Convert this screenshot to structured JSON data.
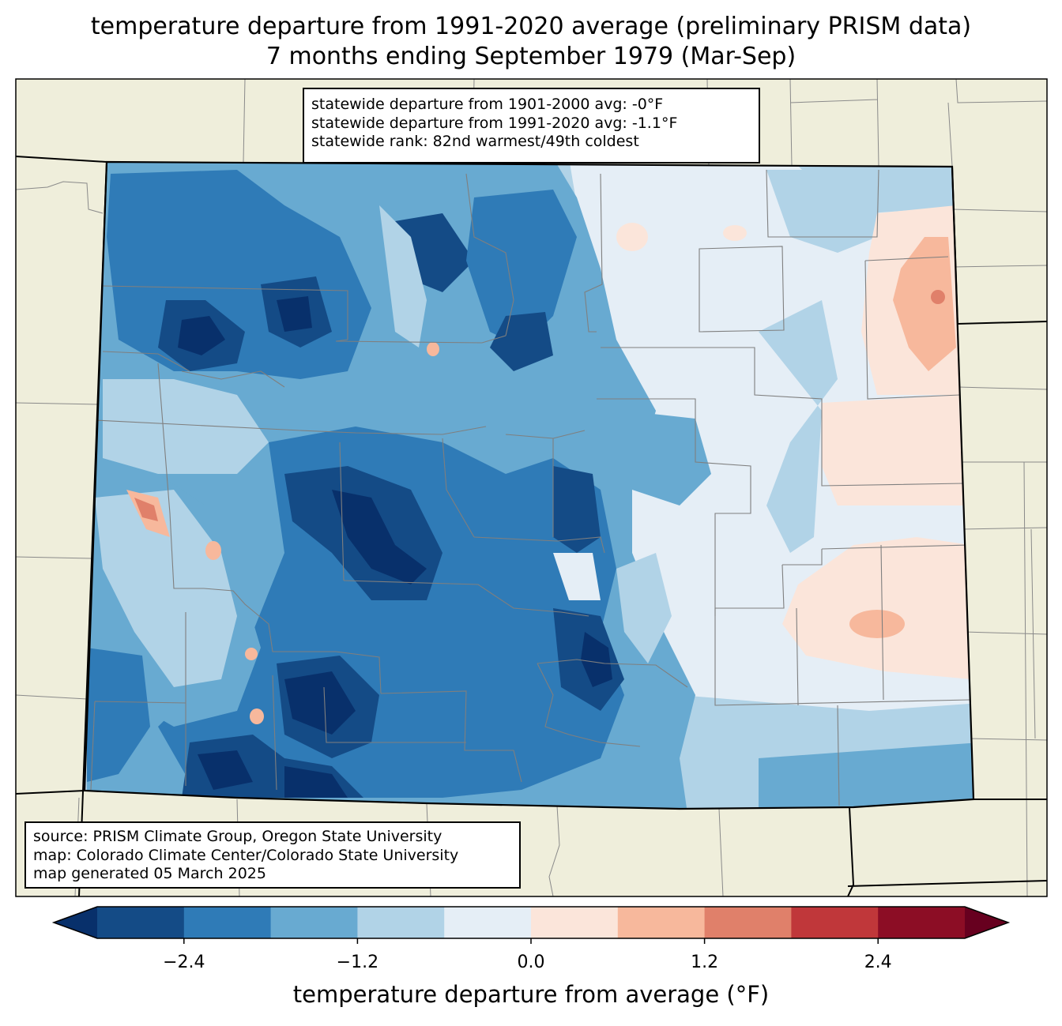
{
  "title": {
    "line1": "temperature departure from 1991-2020 average (preliminary PRISM data)",
    "line2": "7 months ending September 1979 (Mar-Sep)"
  },
  "stats": {
    "line1": "statewide departure from 1901-2000 avg: -0°F",
    "line2": "statewide departure from 1991-2020 avg: -1.1°F",
    "line3": "statewide rank: 82nd warmest/49th coldest"
  },
  "source": {
    "line1": "source: PRISM Climate Group, Oregon State University",
    "line2": "map: Colorado Climate Center/Colorado State University",
    "line3": "map generated 05 March 2025"
  },
  "colorbar": {
    "label": "temperature departure from average (°F)",
    "ticks": [
      "−2.4",
      "−1.2",
      "0.0",
      "1.2",
      "2.4"
    ],
    "tick_values": [
      -2.4,
      -1.2,
      0.0,
      1.2,
      2.4
    ],
    "bounds": [
      -3.0,
      -2.4,
      -1.8,
      -1.2,
      -0.6,
      0.0,
      0.6,
      1.2,
      1.8,
      2.4,
      3.0
    ],
    "colors": [
      "#08306b",
      "#144b86",
      "#2f7bb7",
      "#68aad1",
      "#b1d3e7",
      "#e5eef6",
      "#fbe5da",
      "#f7b89c",
      "#e0806a",
      "#c0373a",
      "#8c0d25",
      "#67001f"
    ]
  },
  "map_colors": {
    "land": "#efeedb",
    "state_border": "#000000",
    "county_border": "#808080"
  }
}
